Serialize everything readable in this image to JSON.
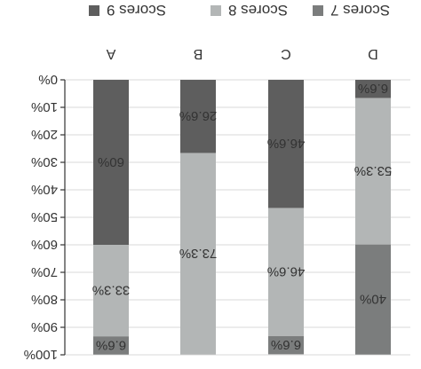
{
  "chart_data": {
    "type": "bar",
    "stacked": true,
    "categories": [
      "A",
      "B",
      "C",
      "D"
    ],
    "y_ticks": [
      "0%",
      "10%",
      "20%",
      "30%",
      "40%",
      "50%",
      "60%",
      "70%",
      "80%",
      "90%",
      "100%"
    ],
    "ylim": [
      0,
      100
    ],
    "grid": true,
    "legend_position": "top",
    "series": [
      {
        "name": "Scores 9",
        "values": [
          60,
          26.6,
          46.6,
          6.6
        ],
        "labels": [
          "60%",
          "26.6%",
          "46.6%",
          "6.6%"
        ],
        "color": "#5e5e5e"
      },
      {
        "name": "Scores 8",
        "values": [
          33.3,
          73.3,
          46.6,
          53.3
        ],
        "labels": [
          "33.3%",
          "73.3%",
          "46.6%",
          "53.3%"
        ],
        "color": "#b3b6b6"
      },
      {
        "name": "Scores 7",
        "values": [
          6.6,
          0,
          6.6,
          40
        ],
        "labels": [
          "6.6%",
          "",
          "6.6%",
          "40%"
        ],
        "color": "#7b7d7d"
      }
    ]
  }
}
